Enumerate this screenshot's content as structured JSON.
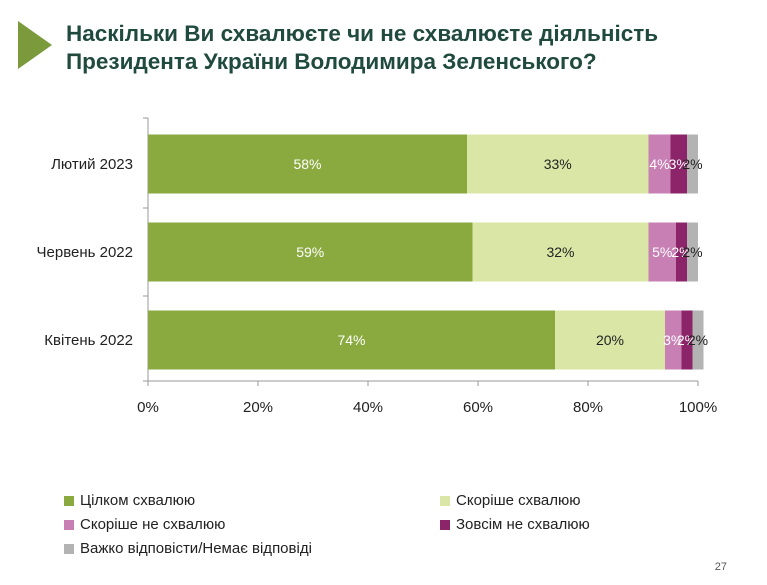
{
  "header": {
    "title_line1": "Наскільки Ви схвалюєте чи не схвалюєте діяльність",
    "title_line2": "Президента України Володимира Зеленського?",
    "accent_color": "#7a9a3c"
  },
  "chart_data": {
    "type": "bar",
    "orientation": "horizontal",
    "stacked": true,
    "categories": [
      "Лютий 2023",
      "Червень 2022",
      "Квітень 2022"
    ],
    "series": [
      {
        "name": "Цілком схвалюю",
        "color": "#8aaa3f",
        "values": [
          58,
          59,
          74
        ],
        "labels": [
          "58%",
          "59%",
          "74%"
        ]
      },
      {
        "name": "Скоріше схвалюю",
        "color": "#d9e6a6",
        "values": [
          33,
          32,
          20
        ],
        "labels": [
          "33%",
          "32%",
          "20%"
        ]
      },
      {
        "name": "Скоріше не схвалюю",
        "color": "#c87fb4",
        "values": [
          4,
          5,
          3
        ],
        "labels": [
          "4%",
          "5%",
          "3%"
        ]
      },
      {
        "name": "Зовсім не схвалюю",
        "color": "#8b2468",
        "values": [
          3,
          2,
          2
        ],
        "labels": [
          "3%",
          "2%",
          "2%"
        ]
      },
      {
        "name": "Важко відповісти/Немає відповіді",
        "color": "#b3b3b3",
        "values": [
          2,
          2,
          2
        ],
        "labels": [
          "2%",
          "2%",
          "2%"
        ]
      }
    ],
    "xlim": [
      0,
      100
    ],
    "xticks": [
      "0%",
      "20%",
      "40%",
      "60%",
      "80%",
      "100%"
    ],
    "legend_position": "bottom",
    "grid": false
  },
  "footer": {
    "page_number": "27"
  }
}
